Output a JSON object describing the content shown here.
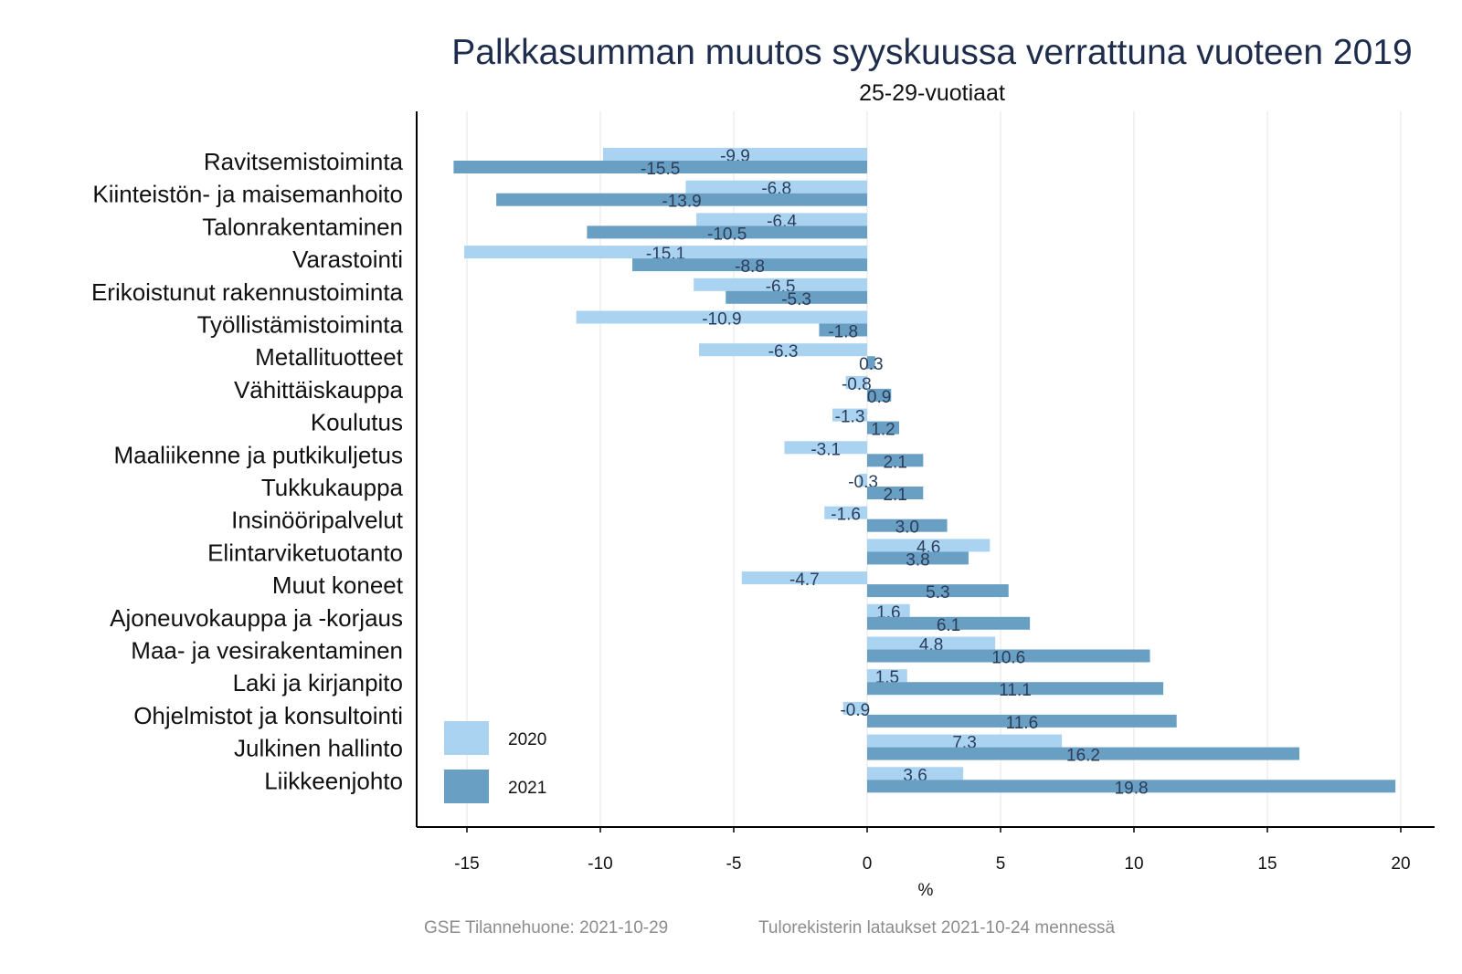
{
  "footer": {
    "source": "GSE Tilannehuone: 2021-10-29",
    "note": "Tulorekisterin lataukset 2021-10-24 mennessä"
  },
  "chart_data": {
    "type": "bar",
    "orientation": "horizontal",
    "title": "Palkkasumman muutos syyskuussa verrattuna vuoteen 2019",
    "subtitle": "25-29-vuotiaat",
    "xlabel": "%",
    "ylabel": "",
    "xlim": [
      -16.5,
      21.3
    ],
    "xticks": [
      -15,
      -10,
      -5,
      0,
      5,
      10,
      15,
      20
    ],
    "xtick_labels": [
      "-15",
      "-10",
      "-5",
      "0",
      "5",
      "10",
      "15",
      "20"
    ],
    "grid": true,
    "legend_position": "bottom-left",
    "categories": [
      "Ravitsemistoiminta",
      "Kiinteistön- ja maisemanhoito",
      "Talonrakentaminen",
      "Varastointi",
      "Erikoistunut rakennustoiminta",
      "Työllistämistoiminta",
      "Metallituotteet",
      "Vähittäiskauppa",
      "Koulutus",
      "Maaliikenne ja putkikuljetus",
      "Tukkukauppa",
      "Insinööripalvelut",
      "Elintarviketuotanto",
      "Muut koneet",
      "Ajoneuvokauppa ja -korjaus",
      "Maa- ja vesirakentaminen",
      "Laki ja kirjanpito",
      "Ohjelmistot ja konsultointi",
      "Julkinen hallinto",
      "Liikkeenjohto"
    ],
    "series": [
      {
        "name": "2020",
        "color": "#a9d3f0",
        "values": [
          -9.9,
          -6.8,
          -6.4,
          -15.1,
          -6.5,
          -10.9,
          -6.3,
          -0.8,
          -1.3,
          -3.1,
          -0.3,
          -1.6,
          4.6,
          -4.7,
          1.6,
          4.8,
          1.5,
          -0.9,
          7.3,
          3.6
        ],
        "labels": [
          "-9.9",
          "-6.8",
          "-6.4",
          "-15.1",
          "-6.5",
          "-10.9",
          "-6.3",
          "-0.8",
          "-1.3",
          "-3.1",
          "-0.3",
          "-1.6",
          "4.6",
          "-4.7",
          "1.6",
          "4.8",
          "1.5",
          "-0.9",
          "7.3",
          "3.6"
        ]
      },
      {
        "name": "2021",
        "color": "#6a9fc4",
        "values": [
          -15.5,
          -13.9,
          -10.5,
          -8.8,
          -5.3,
          -1.8,
          0.3,
          0.9,
          1.2,
          2.1,
          2.1,
          3.0,
          3.8,
          5.3,
          6.1,
          10.6,
          11.1,
          11.6,
          16.2,
          19.8
        ],
        "labels": [
          "-15.5",
          "-13.9",
          "-10.5",
          "-8.8",
          "-5.3",
          "-1.8",
          "0.3",
          "0.9",
          "1.2",
          "2.1",
          "2.1",
          "3.0",
          "3.8",
          "5.3",
          "6.1",
          "10.6",
          "11.1",
          "11.6",
          "16.2",
          "19.8"
        ]
      }
    ]
  }
}
